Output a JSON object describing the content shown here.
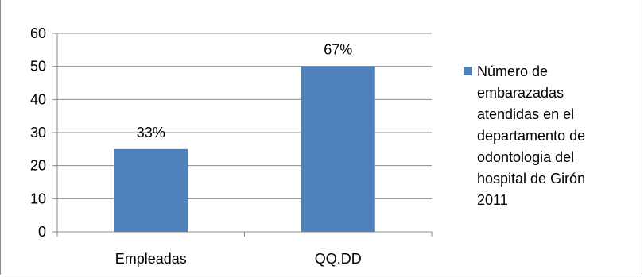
{
  "chart_data": {
    "type": "bar",
    "categories": [
      "Empleadas",
      "QQ.DD"
    ],
    "series": [
      {
        "name": "Número de embarazadas atendidas en el departamento de odontologia del hospital de Girón 2011",
        "values": [
          25,
          50
        ],
        "color": "#4f81bd"
      }
    ],
    "data_labels": [
      "33%",
      "67%"
    ],
    "ylim": [
      0,
      60
    ],
    "yticks": [
      0,
      10,
      20,
      30,
      40,
      50,
      60
    ],
    "grid": true,
    "legend_position": "right",
    "legend_lines": [
      "Número de",
      "embarazadas",
      "atendidas en el",
      "departamento de",
      "odontologia del",
      "hospital de Girón",
      "2011"
    ]
  }
}
